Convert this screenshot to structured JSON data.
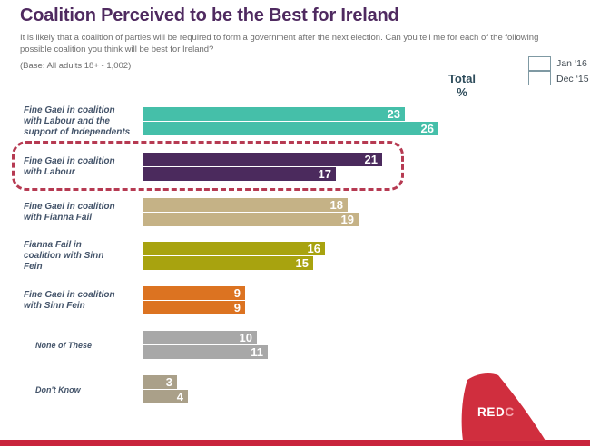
{
  "slide": {
    "title": "Coalition Perceived to be the Best for Ireland",
    "subtitle": "It is likely that a coalition of parties will be required to form a government after the next election.  Can you tell me for each of the following possible coalition you think will be best for Ireland?",
    "base_note": "(Base: All adults 18+ - 1,002)",
    "total_header_line1": "Total",
    "total_header_line2": "%"
  },
  "chart_data": {
    "type": "bar",
    "orientation": "horizontal",
    "title": "Coalition Perceived to be the Best for Ireland",
    "unit": "%",
    "xlim": [
      0,
      26
    ],
    "grid": false,
    "data_labels": true,
    "legend_position": "top-right",
    "categories": [
      "Fine Gael in coalition with Labour and the support of Independents",
      "Fine Gael in coalition with Labour",
      "Fine Gael in coalition with Fianna Fail",
      "Fianna Fail in coalition with Sinn Fein",
      "Fine Gael in coalition with Sinn Fein",
      "None of These",
      "Don't Know"
    ],
    "category_lines": [
      [
        "Fine Gael in coalition",
        "with Labour and the",
        "support of Independents"
      ],
      [
        "Fine Gael in coalition",
        "with Labour"
      ],
      [
        "Fine Gael in coalition",
        "with Fianna Fail"
      ],
      [
        "Fianna Fail in",
        "coalition with Sinn",
        "Fein"
      ],
      [
        "Fine Gael in coalition",
        "with Sinn Fein"
      ],
      [
        "None of These"
      ],
      [
        "Don't Know"
      ]
    ],
    "series": [
      {
        "name": "Jan ‘16",
        "values": [
          23,
          21,
          18,
          16,
          9,
          10,
          3
        ]
      },
      {
        "name": "Dec ‘15",
        "values": [
          26,
          17,
          19,
          15,
          9,
          11,
          4
        ]
      }
    ],
    "category_colors": [
      "#45bfa9",
      "#4b2a5d",
      "#c5b286",
      "#a8a30f",
      "#dc7321",
      "#a8a8a8",
      "#aaa089"
    ],
    "highlighted_category_index": 1,
    "highlight_style": "red-dashed-rounded-box"
  },
  "branding": {
    "logo_text_red": "RED",
    "logo_text_c": "C",
    "brand_red": "#d02e3e",
    "footer_stripe_color": "#c9243c"
  },
  "colors": {
    "title_text": "#4f2a60",
    "subtitle_text": "#6e6e6e",
    "category_label_text": "#44546a",
    "total_header_text": "#2f4d5c",
    "highlight_border": "#b63a52",
    "value_text": "#ffffff"
  }
}
